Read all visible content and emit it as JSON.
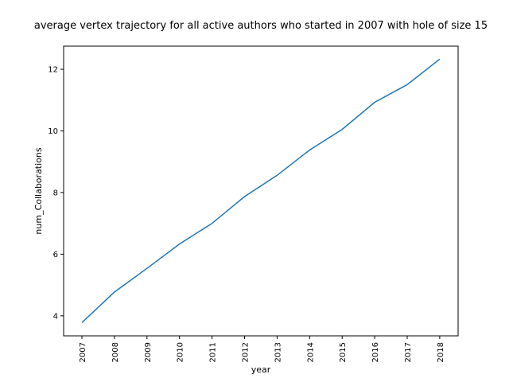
{
  "chart_data": {
    "type": "line",
    "title": "average vertex trajectory for all active authors who started in 2007 with hole of size 15",
    "xlabel": "year",
    "ylabel": "num_Collaborations",
    "x": [
      "2007",
      "2008",
      "2009",
      "2010",
      "2011",
      "2012",
      "2013",
      "2014",
      "2015",
      "2016",
      "2017",
      "2018"
    ],
    "series": [
      {
        "color": "#1f77b4",
        "values": [
          3.78,
          4.77,
          5.54,
          6.33,
          7.0,
          7.87,
          8.56,
          9.38,
          10.05,
          10.93,
          11.5,
          12.33
        ]
      }
    ],
    "yticks": [
      4,
      6,
      8,
      10,
      12
    ],
    "ylim": [
      3.35,
      12.75
    ],
    "grid": false,
    "legend": "none"
  }
}
